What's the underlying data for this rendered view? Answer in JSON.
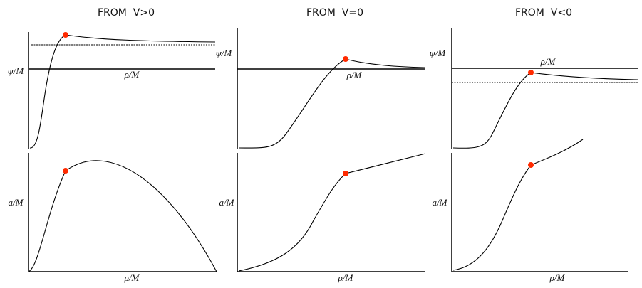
{
  "panels": [
    {
      "title": "FROM  V>0",
      "top": {
        "ylabel": "ψ/M",
        "xlabel": "ρ/M"
      },
      "bottom": {
        "ylabel": "a/M",
        "xlabel": "ρ/M"
      }
    },
    {
      "title": "FROM  V=0",
      "top": {
        "ylabel": "ψ/M",
        "xlabel": "ρ/M"
      },
      "bottom": {
        "ylabel": "a/M",
        "xlabel": "ρ/M"
      }
    },
    {
      "title": "FROM  V<0",
      "top": {
        "ylabel": "ψ/M",
        "xlabel": "ρ/M"
      },
      "bottom": {
        "ylabel": "a/M",
        "xlabel": "ρ/M"
      }
    }
  ]
}
